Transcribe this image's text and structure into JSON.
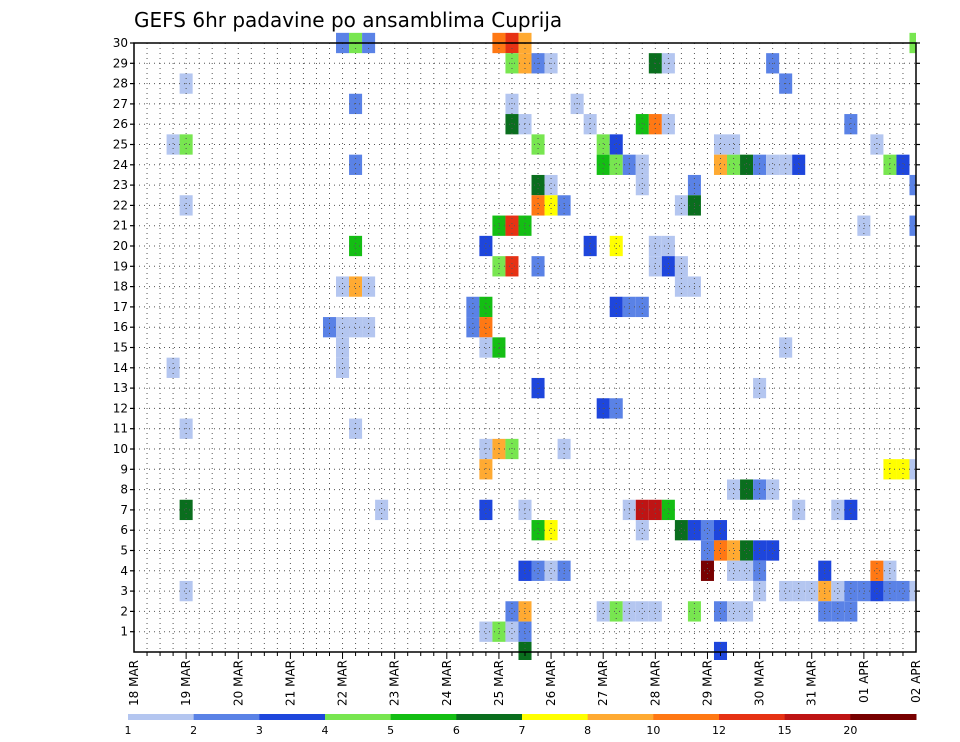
{
  "chart_data": {
    "type": "heatmap",
    "title": "GEFS 6hr padavine po ansamblima Cuprija",
    "xlabel": "",
    "ylabel": "",
    "x_ticks": [
      "18 MAR",
      "19 MAR",
      "20 MAR",
      "21 MAR",
      "22 MAR",
      "23 MAR",
      "24 MAR",
      "25 MAR",
      "26 MAR",
      "27 MAR",
      "28 MAR",
      "29 MAR",
      "30 MAR",
      "31 MAR",
      "01 APR",
      "02 APR"
    ],
    "y_ticks": [
      1,
      2,
      3,
      4,
      5,
      6,
      7,
      8,
      9,
      10,
      11,
      12,
      13,
      14,
      15,
      16,
      17,
      18,
      19,
      20,
      21,
      22,
      23,
      24,
      25,
      26,
      27,
      28,
      29,
      30
    ],
    "x_range_steps": [
      0,
      60
    ],
    "y_range_members": [
      0,
      30
    ],
    "grid": true,
    "legend": {
      "placement": "bottom",
      "thresholds": [
        "1",
        "2",
        "3",
        "4",
        "5",
        "6",
        "7",
        "8",
        "10",
        "12",
        "15",
        "20"
      ],
      "colors": [
        "#b4c6f0",
        "#5a82e6",
        "#1e46dc",
        "#78e650",
        "#14be14",
        "#0a6e1e",
        "#ffff00",
        "#ffaa32",
        "#ff7814",
        "#e63214",
        "#be1414",
        "#780000"
      ]
    },
    "cells": [
      [
        16,
        30,
        2
      ],
      [
        17,
        30,
        4
      ],
      [
        18,
        30,
        2
      ],
      [
        28,
        30,
        9
      ],
      [
        29,
        30,
        10
      ],
      [
        30,
        30,
        8
      ],
      [
        60,
        30,
        4
      ],
      [
        29,
        29,
        4
      ],
      [
        30,
        29,
        8
      ],
      [
        31,
        29,
        2
      ],
      [
        32,
        29,
        1
      ],
      [
        40,
        29,
        6
      ],
      [
        41,
        29,
        1
      ],
      [
        49,
        29,
        2
      ],
      [
        4,
        28,
        1
      ],
      [
        50,
        28,
        2
      ],
      [
        17,
        27,
        2
      ],
      [
        29,
        27,
        1
      ],
      [
        34,
        27,
        1
      ],
      [
        29,
        26,
        6
      ],
      [
        30,
        26,
        1
      ],
      [
        35,
        26,
        1
      ],
      [
        39,
        26,
        5
      ],
      [
        40,
        26,
        9
      ],
      [
        41,
        26,
        1
      ],
      [
        55,
        26,
        2
      ],
      [
        3,
        25,
        1
      ],
      [
        4,
        25,
        4
      ],
      [
        31,
        25,
        4
      ],
      [
        36,
        25,
        4
      ],
      [
        37,
        25,
        3
      ],
      [
        45,
        25,
        1
      ],
      [
        46,
        25,
        1
      ],
      [
        57,
        25,
        1
      ],
      [
        17,
        24,
        2
      ],
      [
        36,
        24,
        5
      ],
      [
        37,
        24,
        4
      ],
      [
        38,
        24,
        2
      ],
      [
        39,
        24,
        1
      ],
      [
        45,
        24,
        8
      ],
      [
        46,
        24,
        4
      ],
      [
        47,
        24,
        6
      ],
      [
        48,
        24,
        2
      ],
      [
        49,
        24,
        1
      ],
      [
        50,
        24,
        1
      ],
      [
        51,
        24,
        3
      ],
      [
        58,
        24,
        4
      ],
      [
        59,
        24,
        3
      ],
      [
        31,
        23,
        6
      ],
      [
        32,
        23,
        1
      ],
      [
        39,
        23,
        1
      ],
      [
        43,
        23,
        2
      ],
      [
        60,
        23,
        2
      ],
      [
        4,
        22,
        1
      ],
      [
        31,
        22,
        9
      ],
      [
        32,
        22,
        7
      ],
      [
        33,
        22,
        2
      ],
      [
        42,
        22,
        1
      ],
      [
        43,
        22,
        6
      ],
      [
        28,
        21,
        5
      ],
      [
        29,
        21,
        10
      ],
      [
        30,
        21,
        5
      ],
      [
        56,
        21,
        1
      ],
      [
        60,
        21,
        2
      ],
      [
        17,
        20,
        5
      ],
      [
        27,
        20,
        3
      ],
      [
        35,
        20,
        3
      ],
      [
        37,
        20,
        7
      ],
      [
        40,
        20,
        1
      ],
      [
        41,
        20,
        1
      ],
      [
        28,
        19,
        4
      ],
      [
        29,
        19,
        10
      ],
      [
        31,
        19,
        2
      ],
      [
        40,
        19,
        1
      ],
      [
        41,
        19,
        3
      ],
      [
        42,
        19,
        1
      ],
      [
        16,
        18,
        1
      ],
      [
        17,
        18,
        8
      ],
      [
        18,
        18,
        1
      ],
      [
        42,
        18,
        1
      ],
      [
        43,
        18,
        1
      ],
      [
        26,
        17,
        2
      ],
      [
        27,
        17,
        5
      ],
      [
        37,
        17,
        3
      ],
      [
        38,
        17,
        2
      ],
      [
        39,
        17,
        2
      ],
      [
        15,
        16,
        2
      ],
      [
        16,
        16,
        1
      ],
      [
        17,
        16,
        1
      ],
      [
        18,
        16,
        1
      ],
      [
        26,
        16,
        2
      ],
      [
        27,
        16,
        9
      ],
      [
        16,
        15,
        1
      ],
      [
        27,
        15,
        1
      ],
      [
        28,
        15,
        5
      ],
      [
        50,
        15,
        1
      ],
      [
        3,
        14,
        1
      ],
      [
        16,
        14,
        1
      ],
      [
        31,
        13,
        3
      ],
      [
        48,
        13,
        1
      ],
      [
        36,
        12,
        3
      ],
      [
        37,
        12,
        2
      ],
      [
        4,
        11,
        1
      ],
      [
        17,
        11,
        1
      ],
      [
        27,
        10,
        1
      ],
      [
        28,
        10,
        8
      ],
      [
        29,
        10,
        4
      ],
      [
        33,
        10,
        1
      ],
      [
        27,
        9,
        8
      ],
      [
        58,
        9,
        7
      ],
      [
        59,
        9,
        7
      ],
      [
        60,
        9,
        1
      ],
      [
        46,
        8,
        1
      ],
      [
        47,
        8,
        6
      ],
      [
        48,
        8,
        2
      ],
      [
        49,
        8,
        1
      ],
      [
        4,
        7,
        6
      ],
      [
        19,
        7,
        1
      ],
      [
        27,
        7,
        3
      ],
      [
        30,
        7,
        1
      ],
      [
        38,
        7,
        1
      ],
      [
        39,
        7,
        11
      ],
      [
        40,
        7,
        11
      ],
      [
        41,
        7,
        5
      ],
      [
        51,
        7,
        1
      ],
      [
        54,
        7,
        1
      ],
      [
        55,
        7,
        3
      ],
      [
        31,
        6,
        5
      ],
      [
        32,
        6,
        7
      ],
      [
        39,
        6,
        1
      ],
      [
        42,
        6,
        6
      ],
      [
        43,
        6,
        3
      ],
      [
        44,
        6,
        2
      ],
      [
        45,
        6,
        3
      ],
      [
        44,
        5,
        2
      ],
      [
        45,
        5,
        9
      ],
      [
        46,
        5,
        8
      ],
      [
        47,
        5,
        6
      ],
      [
        48,
        5,
        3
      ],
      [
        49,
        5,
        3
      ],
      [
        30,
        4,
        3
      ],
      [
        31,
        4,
        2
      ],
      [
        32,
        4,
        1
      ],
      [
        33,
        4,
        2
      ],
      [
        44,
        4,
        12
      ],
      [
        46,
        4,
        1
      ],
      [
        47,
        4,
        1
      ],
      [
        48,
        4,
        2
      ],
      [
        53,
        4,
        3
      ],
      [
        57,
        4,
        9
      ],
      [
        58,
        4,
        1
      ],
      [
        4,
        3,
        1
      ],
      [
        48,
        3,
        1
      ],
      [
        50,
        3,
        1
      ],
      [
        51,
        3,
        1
      ],
      [
        52,
        3,
        1
      ],
      [
        53,
        3,
        8
      ],
      [
        54,
        3,
        1
      ],
      [
        55,
        3,
        2
      ],
      [
        56,
        3,
        2
      ],
      [
        57,
        3,
        3
      ],
      [
        58,
        3,
        2
      ],
      [
        59,
        3,
        2
      ],
      [
        60,
        3,
        1
      ],
      [
        29,
        2,
        2
      ],
      [
        30,
        2,
        8
      ],
      [
        36,
        2,
        1
      ],
      [
        37,
        2,
        4
      ],
      [
        38,
        2,
        1
      ],
      [
        39,
        2,
        1
      ],
      [
        40,
        2,
        1
      ],
      [
        43,
        2,
        4
      ],
      [
        45,
        2,
        2
      ],
      [
        46,
        2,
        1
      ],
      [
        47,
        2,
        1
      ],
      [
        53,
        2,
        2
      ],
      [
        54,
        2,
        2
      ],
      [
        55,
        2,
        2
      ],
      [
        27,
        1,
        1
      ],
      [
        28,
        1,
        4
      ],
      [
        29,
        1,
        1
      ],
      [
        30,
        1,
        2
      ],
      [
        30,
        0,
        6
      ],
      [
        45,
        0,
        3
      ]
    ]
  }
}
